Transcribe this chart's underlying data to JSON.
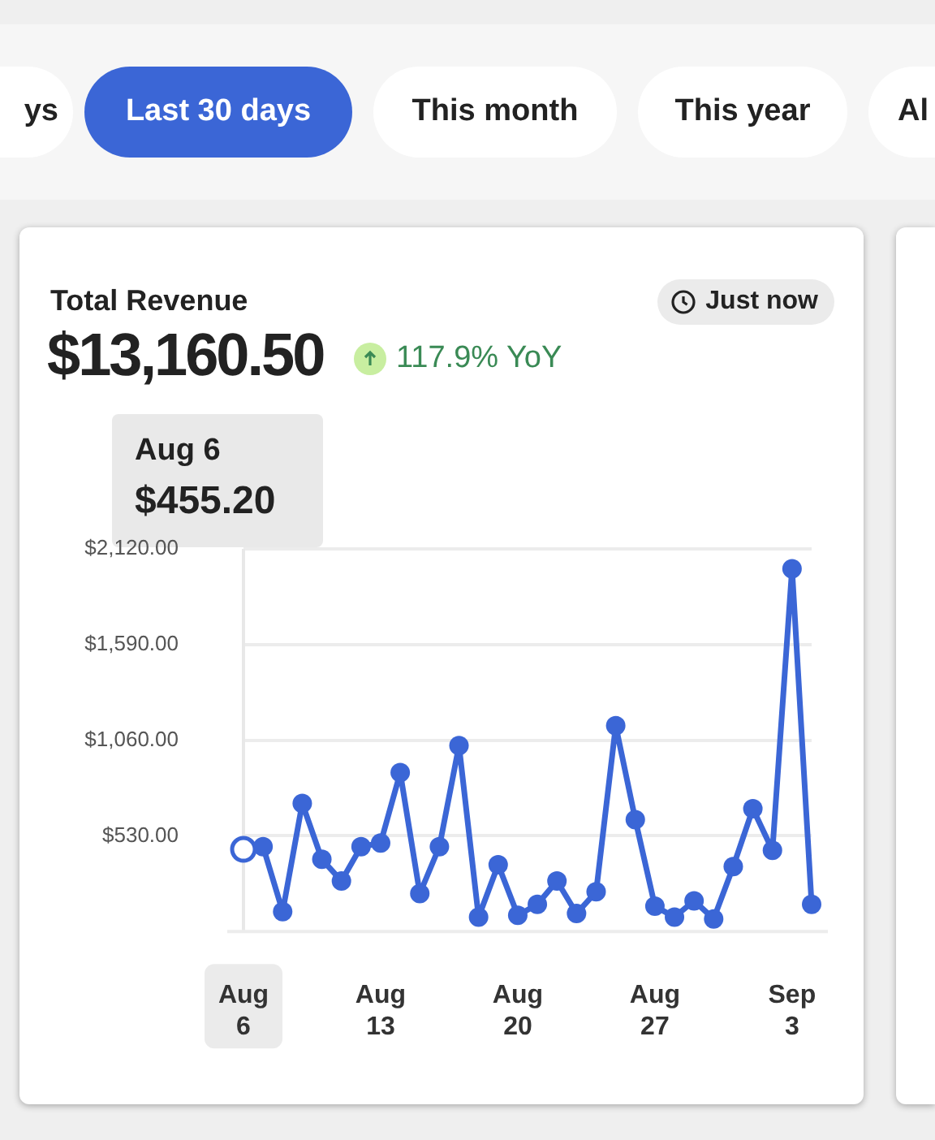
{
  "chart_data": {
    "type": "line",
    "title": "Total Revenue",
    "subtitle": "$13,160.50",
    "annotations": [
      "ys",
      "Last 30 days",
      "This month",
      "This year",
      "Al",
      "Just now",
      "117.9% YoY",
      "Aug 6",
      "$455.20"
    ],
    "categories": [
      "Aug 6",
      null,
      null,
      null,
      null,
      null,
      null,
      "Aug 13",
      null,
      null,
      null,
      null,
      null,
      null,
      "Aug 20",
      null,
      null,
      null,
      null,
      null,
      null,
      "Aug 27",
      null,
      null,
      null,
      null,
      null,
      null,
      "Sep 3",
      null
    ],
    "series": [
      {
        "color": "#3b66d6",
        "values": [
          455.2,
          470,
          110,
          710,
          400,
          280,
          470,
          490,
          880,
          210,
          470,
          1030,
          80,
          370,
          90,
          150,
          280,
          100,
          220,
          1140,
          620,
          140,
          80,
          170,
          70,
          360,
          680,
          450,
          2010,
          150
        ]
      }
    ],
    "ylim": [
      0,
      2120
    ],
    "yticks": [
      {
        "value": 0,
        "label": null
      },
      {
        "value": 530,
        "label": "$530.00"
      },
      {
        "value": 1060,
        "label": "$1,060.00"
      },
      {
        "value": 1590,
        "label": "$1,590.00"
      },
      {
        "value": 2120,
        "label": "$2,120.00"
      }
    ],
    "grid": "y",
    "legend": false,
    "marker": "circle",
    "line_style": "solid"
  }
}
